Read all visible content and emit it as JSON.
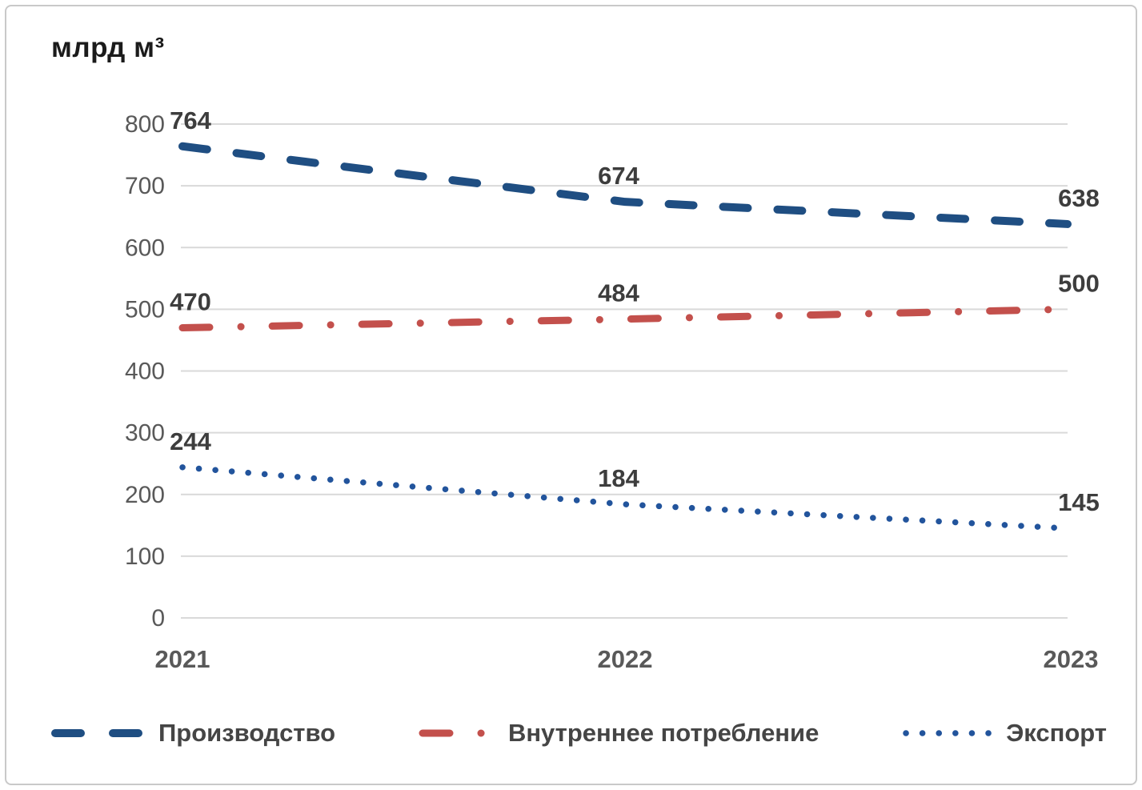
{
  "chart_data": {
    "type": "line",
    "title": "млрд м³",
    "categories": [
      "2021",
      "2022",
      "2023"
    ],
    "series": [
      {
        "name": "Производство",
        "values": [
          764,
          674,
          638
        ],
        "color": "#1f4e82",
        "style": "dash"
      },
      {
        "name": "Внутреннее потребление",
        "values": [
          470,
          484,
          500
        ],
        "color": "#c3504c",
        "style": "dash-dot"
      },
      {
        "name": "Экспорт",
        "values": [
          244,
          184,
          145
        ],
        "color": "#22549c",
        "style": "dot"
      }
    ],
    "ylim": [
      0,
      800
    ],
    "yticks": [
      0,
      100,
      200,
      300,
      400,
      500,
      600,
      700,
      800
    ],
    "ylabel": "млрд м³",
    "xlabel": "",
    "grid": true,
    "legend_position": "bottom",
    "gridline_color": "#d9d9d9"
  }
}
